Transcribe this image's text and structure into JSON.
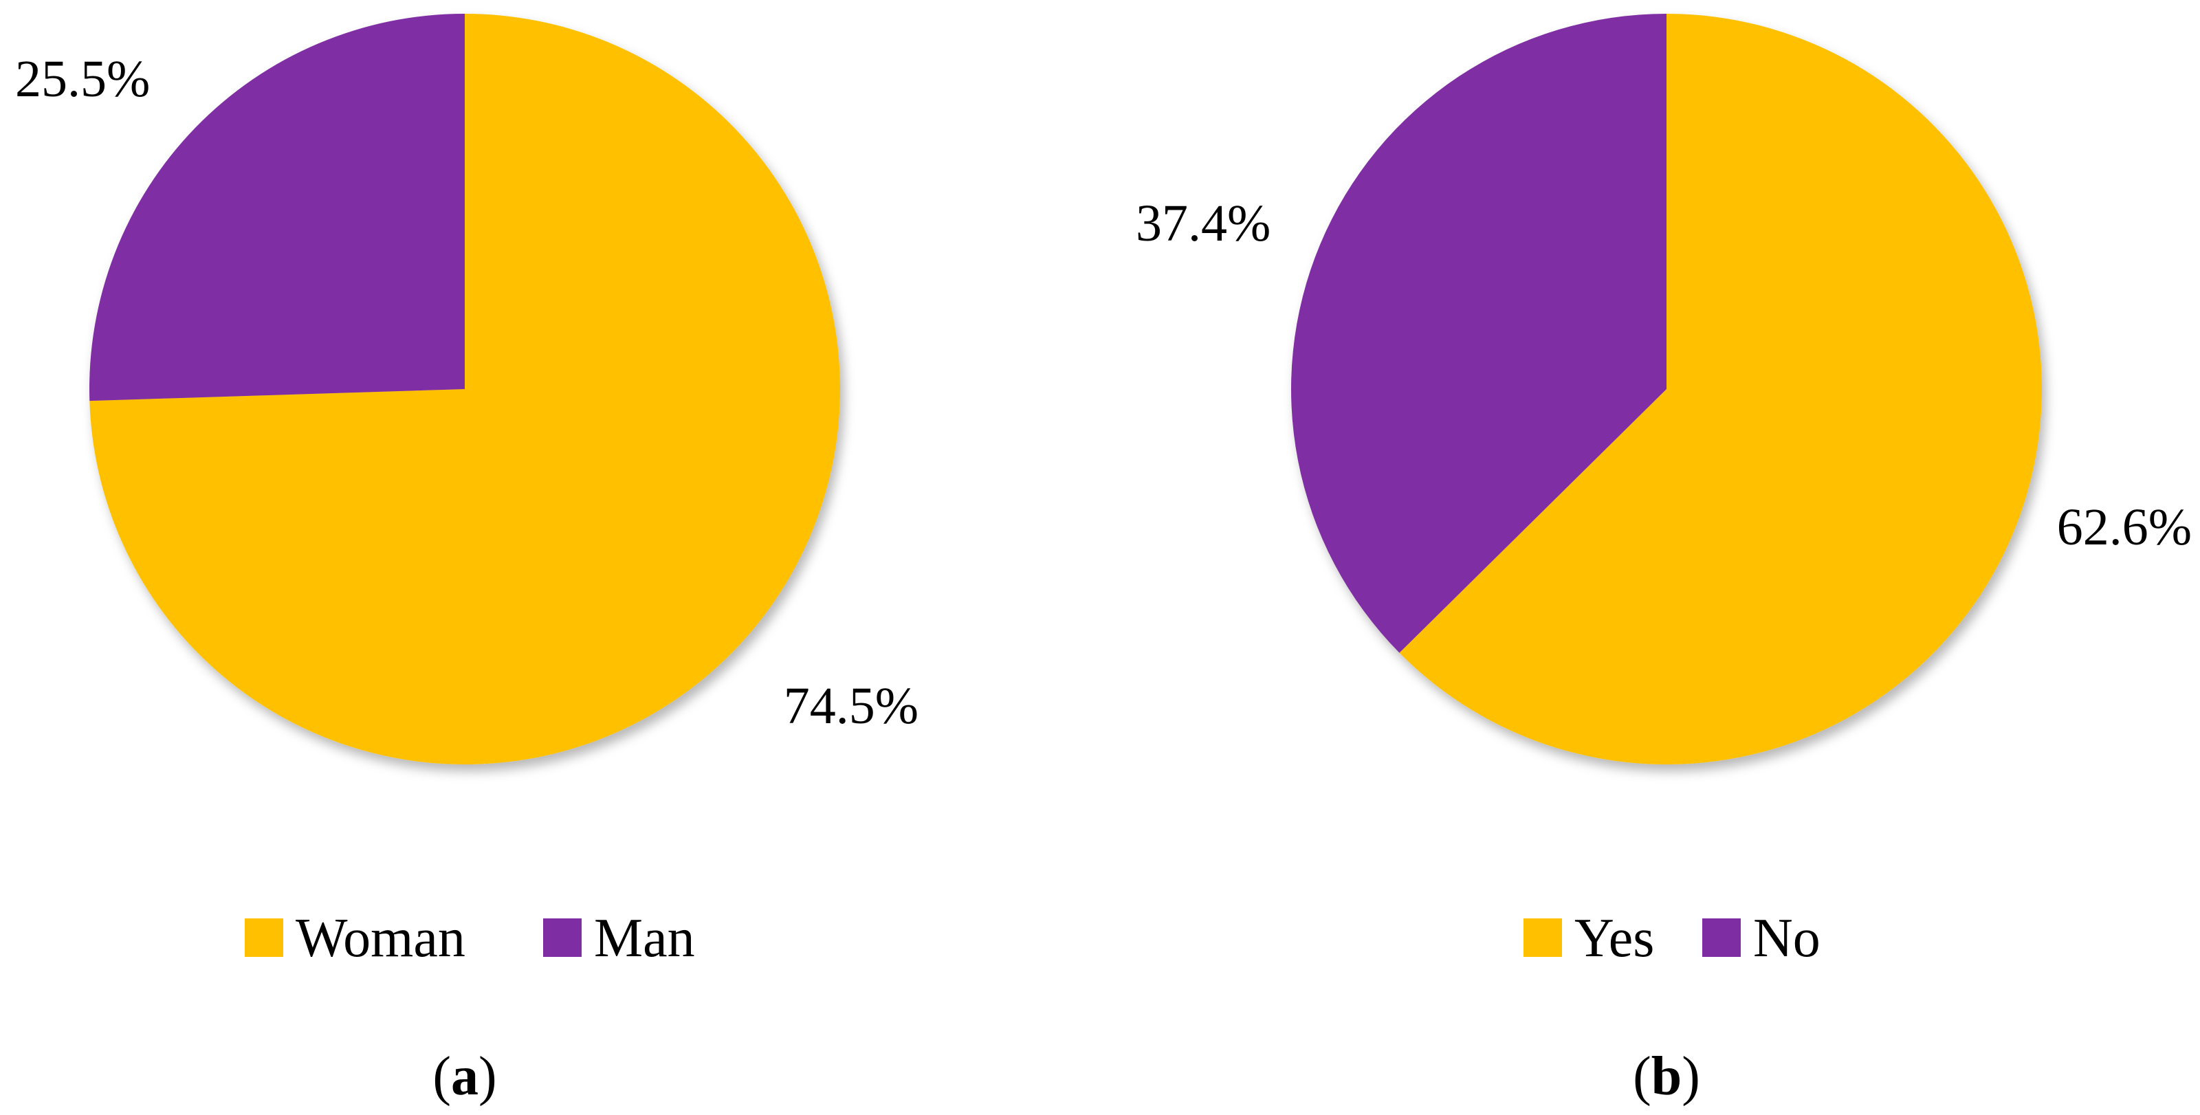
{
  "chart_data": [
    {
      "type": "pie",
      "caption": "a",
      "categories": [
        "Woman",
        "Man"
      ],
      "values": [
        74.5,
        25.5
      ],
      "data_labels": [
        "74.5%",
        "25.5%"
      ],
      "colors": [
        "#FFC000",
        "#7F2DA3"
      ],
      "start_angle_deg": 0,
      "direction": "clockwise",
      "legend_position": "bottom"
    },
    {
      "type": "pie",
      "caption": "b",
      "categories": [
        "Yes",
        "No"
      ],
      "values": [
        62.6,
        37.4
      ],
      "data_labels": [
        "62.6%",
        "37.4%"
      ],
      "colors": [
        "#FFC000",
        "#7F2DA3"
      ],
      "start_angle_deg": 0,
      "direction": "clockwise",
      "legend_position": "bottom"
    }
  ]
}
